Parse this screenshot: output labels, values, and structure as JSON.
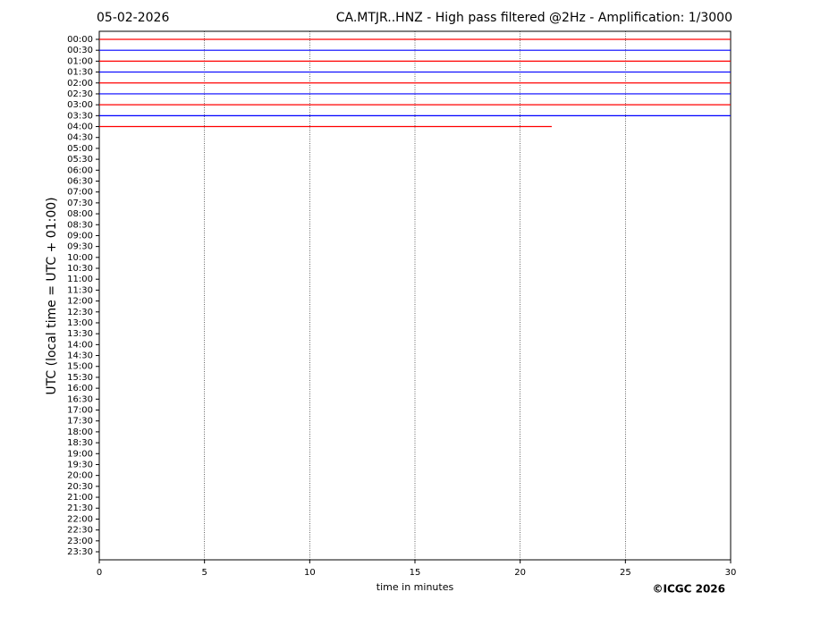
{
  "chart_data": {
    "type": "helicorder",
    "date": "05-02-2026",
    "title": "CA.MTJR..HNZ - High pass filtered @2Hz - Amplification: 1/3000",
    "ylabel": "UTC (local time = UTC + 01:00)",
    "xlabel": "time in minutes",
    "credit": "©ICGC 2026",
    "categories": [
      "00:00",
      "00:30",
      "01:00",
      "01:30",
      "02:00",
      "02:30",
      "03:00",
      "03:30",
      "04:00",
      "04:30",
      "05:00",
      "05:30",
      "06:00",
      "06:30",
      "07:00",
      "07:30",
      "08:00",
      "08:30",
      "09:00",
      "09:30",
      "10:00",
      "10:30",
      "11:00",
      "11:30",
      "12:00",
      "12:30",
      "13:00",
      "13:30",
      "14:00",
      "14:30",
      "15:00",
      "15:30",
      "16:00",
      "16:30",
      "17:00",
      "17:30",
      "18:00",
      "18:30",
      "19:00",
      "19:30",
      "20:00",
      "20:30",
      "21:00",
      "21:30",
      "22:00",
      "22:30",
      "23:00",
      "23:30"
    ],
    "traces": [
      {
        "color": "#ff0000",
        "end": 30
      },
      {
        "color": "#0000ff",
        "end": 30
      },
      {
        "color": "#ff0000",
        "end": 30
      },
      {
        "color": "#0000ff",
        "end": 30
      },
      {
        "color": "#ff0000",
        "end": 30
      },
      {
        "color": "#0000ff",
        "end": 30
      },
      {
        "color": "#ff0000",
        "end": 30
      },
      {
        "color": "#0000ff",
        "end": 30
      },
      {
        "color": "#ff0000",
        "end": 21.5
      }
    ],
    "xlim": [
      0,
      30
    ],
    "xticks": [
      0,
      5,
      10,
      15,
      20,
      25,
      30
    ],
    "grid": true
  }
}
